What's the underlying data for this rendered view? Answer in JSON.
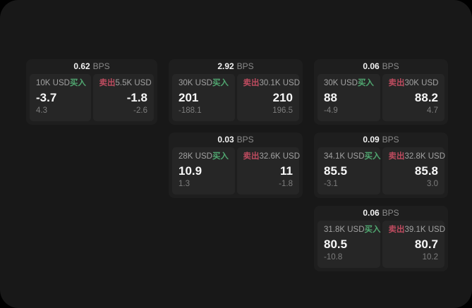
{
  "page": {
    "bps_unit": "BPS",
    "buy_label": "买入",
    "sell_label": "卖出"
  },
  "colors": {
    "page_bg": "#181818",
    "card_bg": "#1e1e1e",
    "panel_bg": "#262626",
    "buy_green": "#50a670",
    "sell_red": "#bd4b5f"
  },
  "cards": [
    {
      "row": 1,
      "col": 1,
      "bps": "0.62",
      "buy": {
        "amount": "10K USD",
        "value": "-3.7",
        "sub": "4.3"
      },
      "sell": {
        "amount": "5.5K USD",
        "value": "-1.8",
        "sub": "-2.6"
      }
    },
    {
      "row": 1,
      "col": 2,
      "bps": "2.92",
      "buy": {
        "amount": "30K USD",
        "value": "201",
        "sub": "-188.1"
      },
      "sell": {
        "amount": "30.1K USD",
        "value": "210",
        "sub": "196.5"
      }
    },
    {
      "row": 1,
      "col": 3,
      "bps": "0.06",
      "buy": {
        "amount": "30K USD",
        "value": "88",
        "sub": "-4.9"
      },
      "sell": {
        "amount": "30K USD",
        "value": "88.2",
        "sub": "4.7"
      }
    },
    {
      "row": 2,
      "col": 2,
      "bps": "0.03",
      "buy": {
        "amount": "28K USD",
        "value": "10.9",
        "sub": "1.3"
      },
      "sell": {
        "amount": "32.6K USD",
        "value": "11",
        "sub": "-1.8"
      }
    },
    {
      "row": 2,
      "col": 3,
      "bps": "0.09",
      "buy": {
        "amount": "34.1K USD",
        "value": "85.5",
        "sub": "-3.1"
      },
      "sell": {
        "amount": "32.8K USD",
        "value": "85.8",
        "sub": "3.0"
      }
    },
    {
      "row": 3,
      "col": 3,
      "bps": "0.06",
      "buy": {
        "amount": "31.8K USD",
        "value": "80.5",
        "sub": "-10.8"
      },
      "sell": {
        "amount": "39.1K USD",
        "value": "80.7",
        "sub": "10.2"
      }
    }
  ]
}
